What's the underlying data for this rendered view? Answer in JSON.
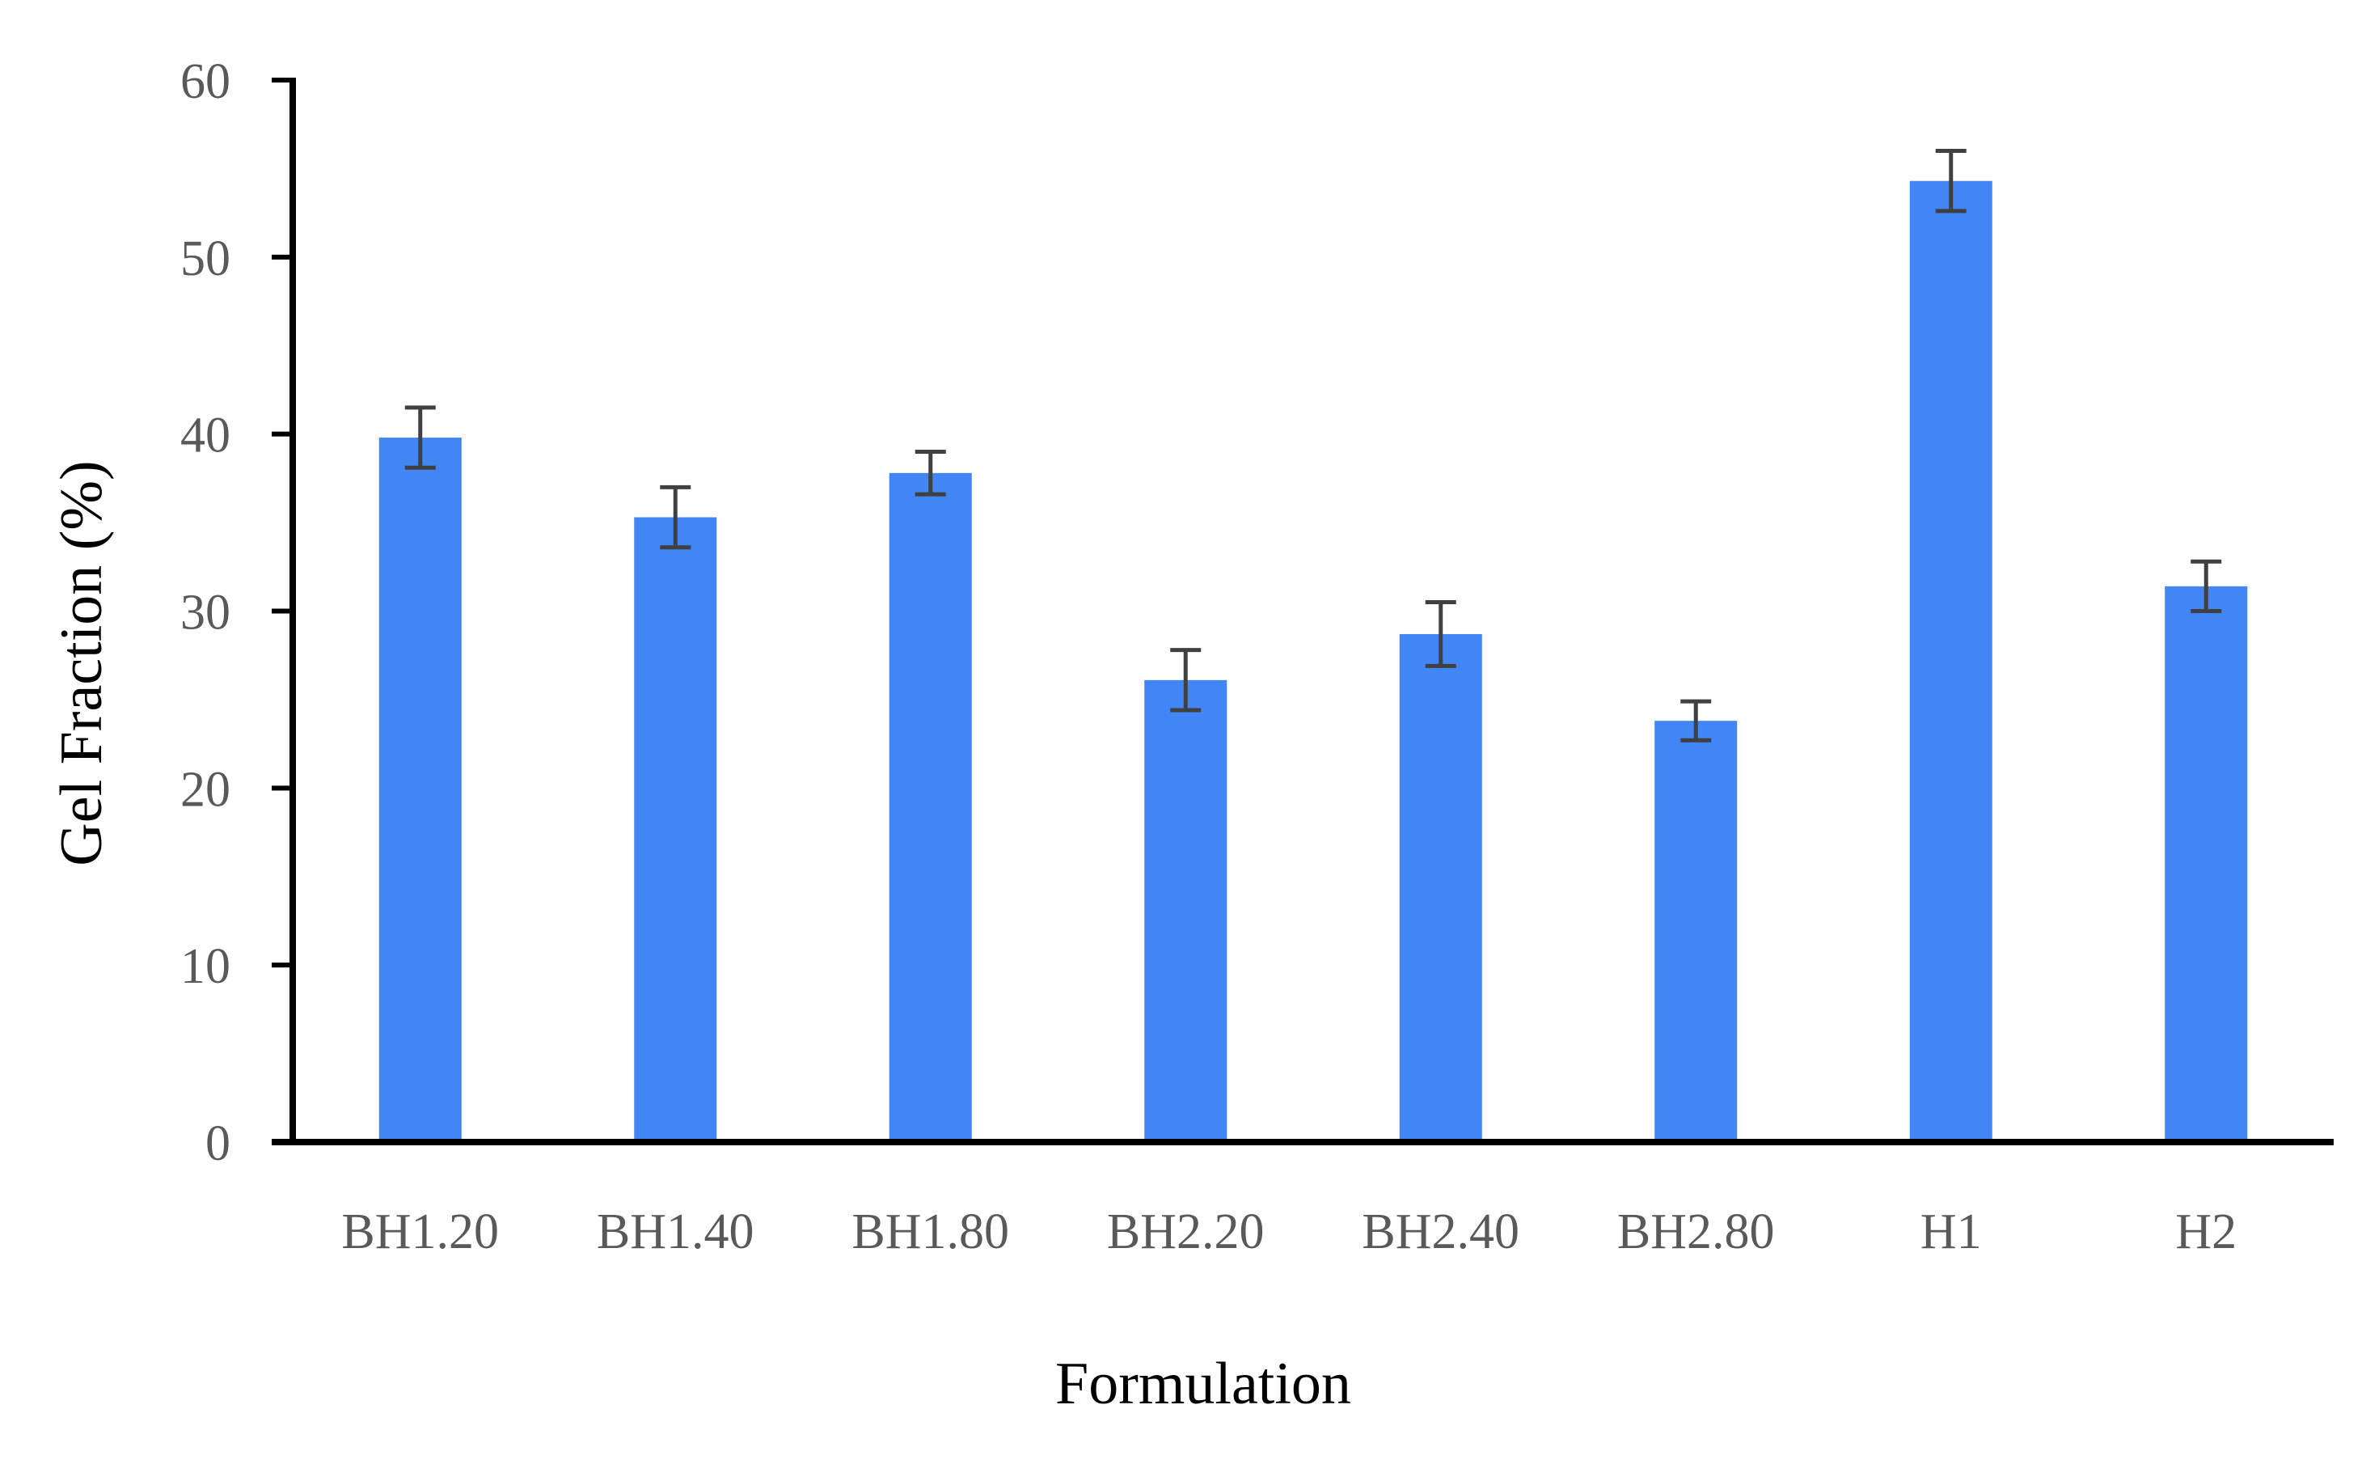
{
  "chart_data": {
    "type": "bar",
    "categories": [
      "BH1.20",
      "BH1.40",
      "BH1.80",
      "BH2.20",
      "BH2.40",
      "BH2.80",
      "H1",
      "H2"
    ],
    "values": [
      39.8,
      35.3,
      37.8,
      26.1,
      28.7,
      23.8,
      54.3,
      31.4
    ],
    "error": [
      1.7,
      1.7,
      1.2,
      1.7,
      1.8,
      1.1,
      1.7,
      1.4
    ],
    "xlabel": "Formulation",
    "ylabel": "Gel Fraction (%)",
    "ylim": [
      0,
      60
    ],
    "yticks": [
      0,
      10,
      20,
      30,
      40,
      50,
      60
    ],
    "grid": false,
    "legend": "none",
    "colors": {
      "bar": "#4285F4",
      "error_bar": "#404040",
      "axis": "#000000",
      "tick_text": "#595959",
      "title_text": "#000000"
    }
  }
}
